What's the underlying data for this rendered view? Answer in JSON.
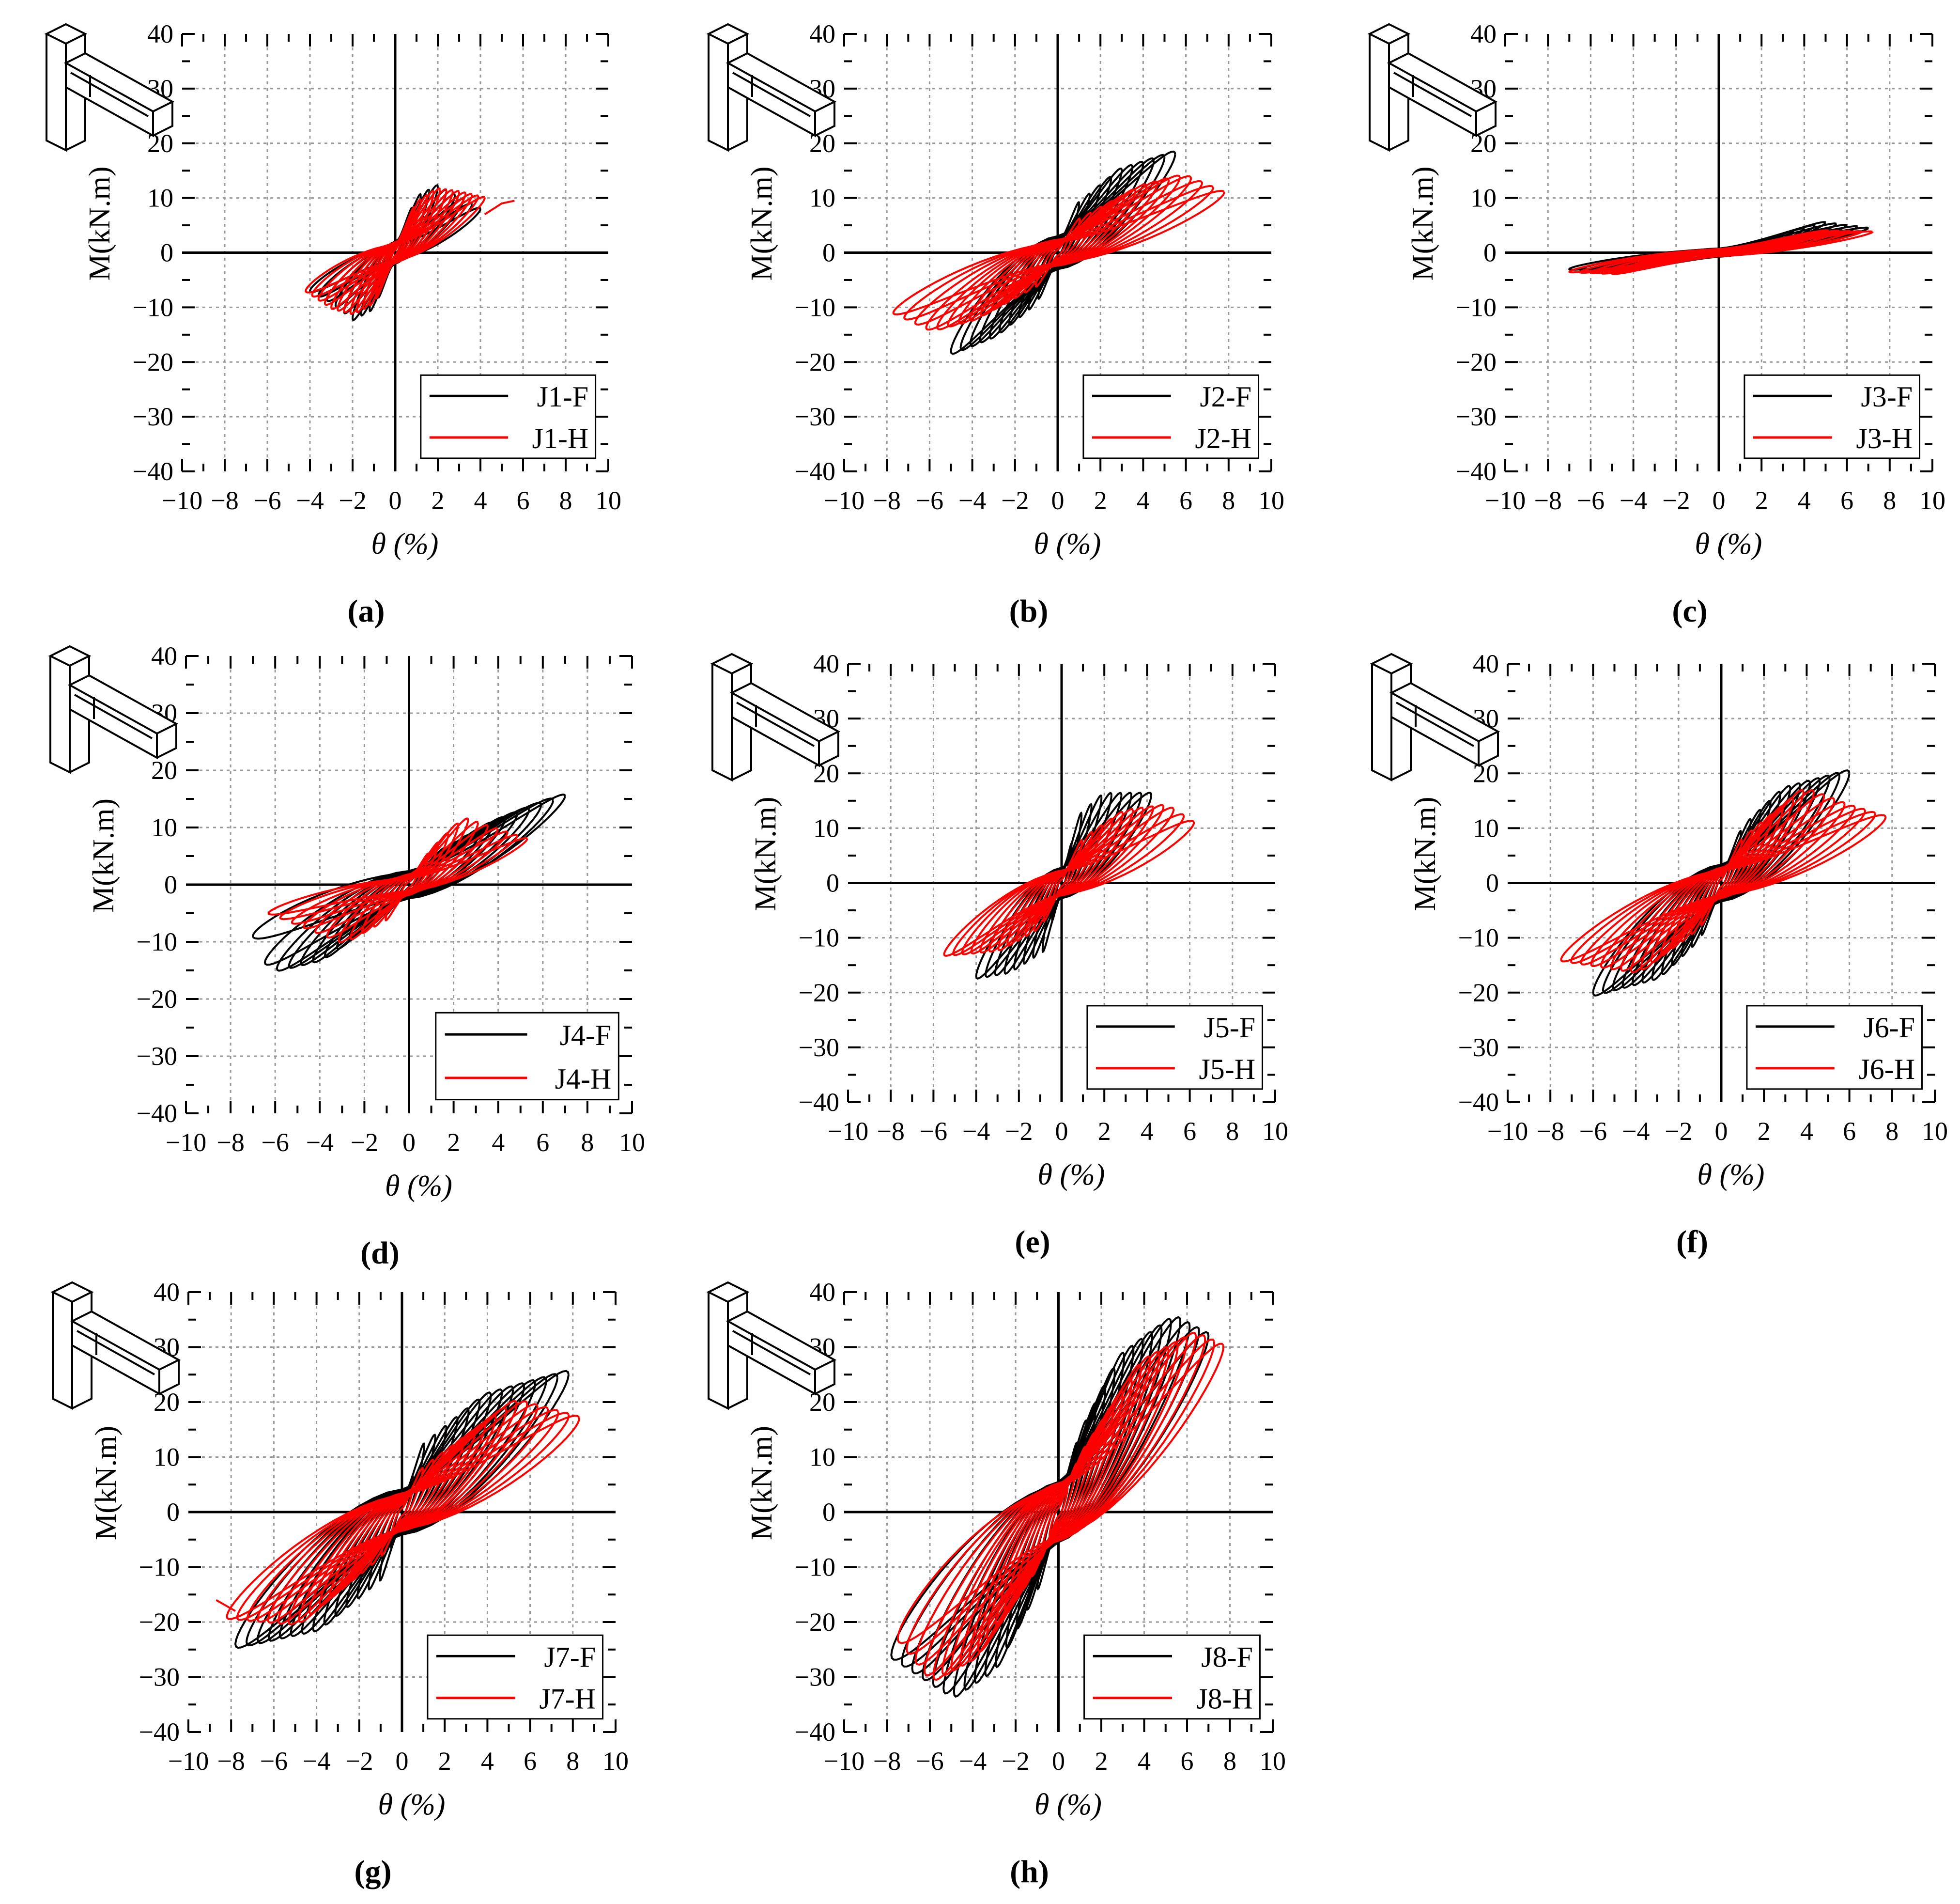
{
  "figure": {
    "colors": {
      "F": "#000000",
      "H": "#ff0000"
    },
    "icon": "beam-column-joint-diagram-icon"
  },
  "chart_data": [
    {
      "type": "line",
      "title": "(a)",
      "xlabel": "θ (%)",
      "ylabel": "M(kN.m)",
      "xlim": [
        -10,
        10
      ],
      "ylim": [
        -40,
        40
      ],
      "grid": true,
      "legend": "bottom-right",
      "xticks": [
        "−10",
        "−8",
        "−6",
        "−4",
        "−2",
        "0",
        "2",
        "4",
        "6",
        "8",
        "10"
      ],
      "yticks": [
        "−40",
        "−30",
        "−20",
        "−10",
        "0",
        "10",
        "20",
        "30",
        "40"
      ],
      "series": [
        {
          "name": "J1-F",
          "color": "#000000",
          "cycles": 10,
          "pos_backbone": [
            [
              0,
              0
            ],
            [
              1,
              10
            ],
            [
              2,
              12
            ],
            [
              3,
              10
            ],
            [
              4,
              8
            ]
          ],
          "neg_backbone": [
            [
              0,
              0
            ],
            [
              -1,
              -10
            ],
            [
              -2,
              -12
            ],
            [
              -3,
              -9
            ],
            [
              -4,
              -7
            ]
          ]
        },
        {
          "name": "J1-H",
          "color": "#ff0000",
          "cycles": 14,
          "pos_backbone": [
            [
              0,
              0
            ],
            [
              1,
              9
            ],
            [
              2,
              11.5
            ],
            [
              3,
              11
            ],
            [
              4.2,
              10
            ]
          ],
          "neg_backbone": [
            [
              0,
              0
            ],
            [
              -1,
              -9
            ],
            [
              -2,
              -11
            ],
            [
              -3,
              -10
            ],
            [
              -4.2,
              -7
            ]
          ],
          "tail": [
            [
              4.2,
              7
            ],
            [
              5,
              9
            ],
            [
              5.6,
              9.5
            ]
          ]
        }
      ]
    },
    {
      "type": "line",
      "title": "(b)",
      "xlabel": "θ (%)",
      "ylabel": "M(kN.m)",
      "xlim": [
        -10,
        10
      ],
      "ylim": [
        -40,
        40
      ],
      "grid": true,
      "legend": "bottom-right",
      "xticks": [
        "−10",
        "−8",
        "−6",
        "−4",
        "−2",
        "0",
        "2",
        "4",
        "6",
        "8",
        "10"
      ],
      "yticks": [
        "−40",
        "−30",
        "−20",
        "−10",
        "0",
        "10",
        "20",
        "30",
        "40"
      ],
      "series": [
        {
          "name": "J2-F",
          "color": "#000000",
          "cycles": 11,
          "pos_backbone": [
            [
              0,
              0
            ],
            [
              1,
              9
            ],
            [
              3,
              15
            ],
            [
              5.5,
              18
            ]
          ],
          "neg_backbone": [
            [
              0,
              0
            ],
            [
              -1,
              -9
            ],
            [
              -3,
              -15
            ],
            [
              -5,
              -18
            ]
          ]
        },
        {
          "name": "J2-H",
          "color": "#ff0000",
          "cycles": 15,
          "pos_backbone": [
            [
              0,
              0
            ],
            [
              1,
              6
            ],
            [
              4,
              12
            ],
            [
              6,
              14
            ],
            [
              7.8,
              11
            ]
          ],
          "neg_backbone": [
            [
              0,
              0
            ],
            [
              -1,
              -6
            ],
            [
              -4,
              -12
            ],
            [
              -6,
              -14
            ],
            [
              -7.7,
              -11
            ]
          ]
        }
      ]
    },
    {
      "type": "line",
      "title": "(c)",
      "xlabel": "θ (%)",
      "ylabel": "M(kN.m)",
      "xlim": [
        -10,
        10
      ],
      "ylim": [
        -40,
        40
      ],
      "grid": true,
      "legend": "bottom-right",
      "xticks": [
        "−10",
        "−8",
        "−6",
        "−4",
        "−2",
        "0",
        "2",
        "4",
        "6",
        "8",
        "10"
      ],
      "yticks": [
        "−40",
        "−30",
        "−20",
        "−10",
        "0",
        "10",
        "20",
        "30",
        "40"
      ],
      "series": [
        {
          "name": "J3-F",
          "color": "#000000",
          "cycles": 14,
          "pos_backbone": [
            [
              0,
              0
            ],
            [
              2,
              2
            ],
            [
              5,
              5.5
            ],
            [
              7,
              4.5
            ]
          ],
          "neg_backbone": [
            [
              0,
              0
            ],
            [
              -2,
              -1.5
            ],
            [
              -5,
              -3.5
            ],
            [
              -7,
              -3
            ]
          ]
        },
        {
          "name": "J3-H",
          "color": "#ff0000",
          "cycles": 14,
          "pos_backbone": [
            [
              0,
              0
            ],
            [
              2,
              1.5
            ],
            [
              5,
              4
            ],
            [
              7.2,
              3.8
            ]
          ],
          "neg_backbone": [
            [
              0,
              0
            ],
            [
              -2,
              -1.5
            ],
            [
              -5,
              -3.8
            ],
            [
              -7,
              -3.5
            ]
          ]
        }
      ]
    },
    {
      "type": "line",
      "title": "(d)",
      "xlabel": "θ (%)",
      "ylabel": "M(kN.m)",
      "xlim": [
        -10,
        10
      ],
      "ylim": [
        -40,
        40
      ],
      "grid": true,
      "legend": "bottom-right",
      "xticks": [
        "−10",
        "−8",
        "−6",
        "−4",
        "−2",
        "0",
        "2",
        "4",
        "6",
        "8",
        "10"
      ],
      "yticks": [
        "−40",
        "−30",
        "−20",
        "−10",
        "0",
        "10",
        "20",
        "30",
        "40"
      ],
      "series": [
        {
          "name": "J4-F",
          "color": "#000000",
          "cycles": 13,
          "pos_backbone": [
            [
              0,
              0
            ],
            [
              1,
              5
            ],
            [
              4,
              11
            ],
            [
              7,
              15.5
            ]
          ],
          "neg_backbone": [
            [
              0,
              0
            ],
            [
              -1,
              -5
            ],
            [
              -4,
              -13
            ],
            [
              -6.3,
              -15
            ],
            [
              -7,
              -9
            ]
          ]
        },
        {
          "name": "J4-H",
          "color": "#ff0000",
          "cycles": 12,
          "pos_backbone": [
            [
              0,
              0
            ],
            [
              1,
              6
            ],
            [
              2.5,
              11.5
            ],
            [
              5.3,
              8
            ]
          ],
          "neg_backbone": [
            [
              0,
              0
            ],
            [
              -1,
              -6
            ],
            [
              -3,
              -10
            ],
            [
              -6.3,
              -5
            ]
          ]
        }
      ]
    },
    {
      "type": "line",
      "title": "(e)",
      "xlabel": "θ (%)",
      "ylabel": "M(kN.m)",
      "xlim": [
        -10,
        10
      ],
      "ylim": [
        -40,
        40
      ],
      "grid": true,
      "legend": "bottom-right",
      "xticks": [
        "−10",
        "−8",
        "−6",
        "−4",
        "−2",
        "0",
        "2",
        "4",
        "6",
        "8",
        "10"
      ],
      "yticks": [
        "−40",
        "−30",
        "−20",
        "−10",
        "0",
        "10",
        "20",
        "30",
        "40"
      ],
      "series": [
        {
          "name": "J5-F",
          "color": "#000000",
          "cycles": 9,
          "pos_backbone": [
            [
              0,
              0
            ],
            [
              0.8,
              12
            ],
            [
              2,
              16
            ],
            [
              4.2,
              16
            ]
          ],
          "neg_backbone": [
            [
              0,
              0
            ],
            [
              -0.8,
              -12
            ],
            [
              -2.5,
              -16
            ],
            [
              -4,
              -17
            ]
          ]
        },
        {
          "name": "J5-H",
          "color": "#ff0000",
          "cycles": 13,
          "pos_backbone": [
            [
              0,
              0
            ],
            [
              1,
              8
            ],
            [
              3,
              13
            ],
            [
              5,
              14
            ],
            [
              6.2,
              11
            ]
          ],
          "neg_backbone": [
            [
              0,
              0
            ],
            [
              -1,
              -8
            ],
            [
              -3,
              -12
            ],
            [
              -5.5,
              -13
            ]
          ]
        }
      ]
    },
    {
      "type": "line",
      "title": "(f)",
      "xlabel": "θ (%)",
      "ylabel": "M(kN.m)",
      "xlim": [
        -10,
        10
      ],
      "ylim": [
        -40,
        40
      ],
      "grid": true,
      "legend": "bottom-right",
      "xticks": [
        "−10",
        "−8",
        "−6",
        "−4",
        "−2",
        "0",
        "2",
        "4",
        "6",
        "8",
        "10"
      ],
      "yticks": [
        "−40",
        "−30",
        "−20",
        "−10",
        "0",
        "10",
        "20",
        "30",
        "40"
      ],
      "series": [
        {
          "name": "J6-F",
          "color": "#000000",
          "cycles": 13,
          "pos_backbone": [
            [
              0,
              0
            ],
            [
              1,
              10
            ],
            [
              3,
              17
            ],
            [
              6,
              20
            ]
          ],
          "neg_backbone": [
            [
              0,
              0
            ],
            [
              -1,
              -10
            ],
            [
              -3,
              -17
            ],
            [
              -6,
              -20
            ]
          ]
        },
        {
          "name": "J6-H",
          "color": "#ff0000",
          "cycles": 16,
          "pos_backbone": [
            [
              0,
              0
            ],
            [
              1,
              8
            ],
            [
              4,
              17
            ],
            [
              6,
              14
            ],
            [
              7.7,
              12
            ]
          ],
          "neg_backbone": [
            [
              0,
              0
            ],
            [
              -1,
              -8
            ],
            [
              -4,
              -16
            ],
            [
              -7.5,
              -14
            ]
          ]
        }
      ]
    },
    {
      "type": "line",
      "title": "(g)",
      "xlabel": "θ (%)",
      "ylabel": "M(kN.m)",
      "xlim": [
        -10,
        10
      ],
      "ylim": [
        -40,
        40
      ],
      "grid": true,
      "legend": "bottom-right",
      "xticks": [
        "−10",
        "−8",
        "−6",
        "−4",
        "−2",
        "0",
        "2",
        "4",
        "6",
        "8",
        "10"
      ],
      "yticks": [
        "−40",
        "−30",
        "−20",
        "−10",
        "0",
        "10",
        "20",
        "30",
        "40"
      ],
      "series": [
        {
          "name": "J7-F",
          "color": "#000000",
          "cycles": 15,
          "pos_backbone": [
            [
              0,
              0
            ],
            [
              1,
              12
            ],
            [
              4,
              21
            ],
            [
              7.8,
              25
            ]
          ],
          "neg_backbone": [
            [
              0,
              0
            ],
            [
              -1,
              -12
            ],
            [
              -4,
              -21
            ],
            [
              -7.8,
              -24
            ]
          ]
        },
        {
          "name": "J7-H",
          "color": "#ff0000",
          "cycles": 17,
          "pos_backbone": [
            [
              0,
              0
            ],
            [
              1,
              8
            ],
            [
              5.5,
              20
            ],
            [
              8.3,
              17
            ]
          ],
          "neg_backbone": [
            [
              0,
              0
            ],
            [
              -1,
              -8
            ],
            [
              -5,
              -20
            ],
            [
              -8.2,
              -19
            ]
          ],
          "tail": [
            [
              -7.8,
              -18
            ],
            [
              -8.7,
              -16
            ]
          ]
        }
      ]
    },
    {
      "type": "line",
      "title": "(h)",
      "xlabel": "θ (%)",
      "ylabel": "M(kN.m)",
      "xlim": [
        -10,
        10
      ],
      "ylim": [
        -40,
        40
      ],
      "grid": true,
      "legend": "bottom-right",
      "xticks": [
        "−10",
        "−8",
        "−6",
        "−4",
        "−2",
        "0",
        "2",
        "4",
        "6",
        "8",
        "10"
      ],
      "yticks": [
        "−40",
        "−30",
        "−20",
        "−10",
        "0",
        "10",
        "20",
        "30",
        "40"
      ],
      "series": [
        {
          "name": "J8-F",
          "color": "#000000",
          "cycles": 16,
          "pos_backbone": [
            [
              0,
              0
            ],
            [
              1,
              14
            ],
            [
              3,
              28
            ],
            [
              5.5,
              35
            ],
            [
              7,
              32
            ]
          ],
          "neg_backbone": [
            [
              0,
              0
            ],
            [
              -1,
              -14
            ],
            [
              -3,
              -28
            ],
            [
              -5,
              -33
            ],
            [
              -7.8,
              -26
            ]
          ]
        },
        {
          "name": "J8-H",
          "color": "#ff0000",
          "cycles": 18,
          "pos_backbone": [
            [
              0,
              0
            ],
            [
              1,
              10
            ],
            [
              4,
              27
            ],
            [
              6.5,
              32
            ],
            [
              7.7,
              30
            ]
          ],
          "neg_backbone": [
            [
              0,
              0
            ],
            [
              -1,
              -10
            ],
            [
              -4,
              -26
            ],
            [
              -6,
              -30
            ],
            [
              -7.5,
              -23
            ]
          ]
        }
      ]
    }
  ]
}
